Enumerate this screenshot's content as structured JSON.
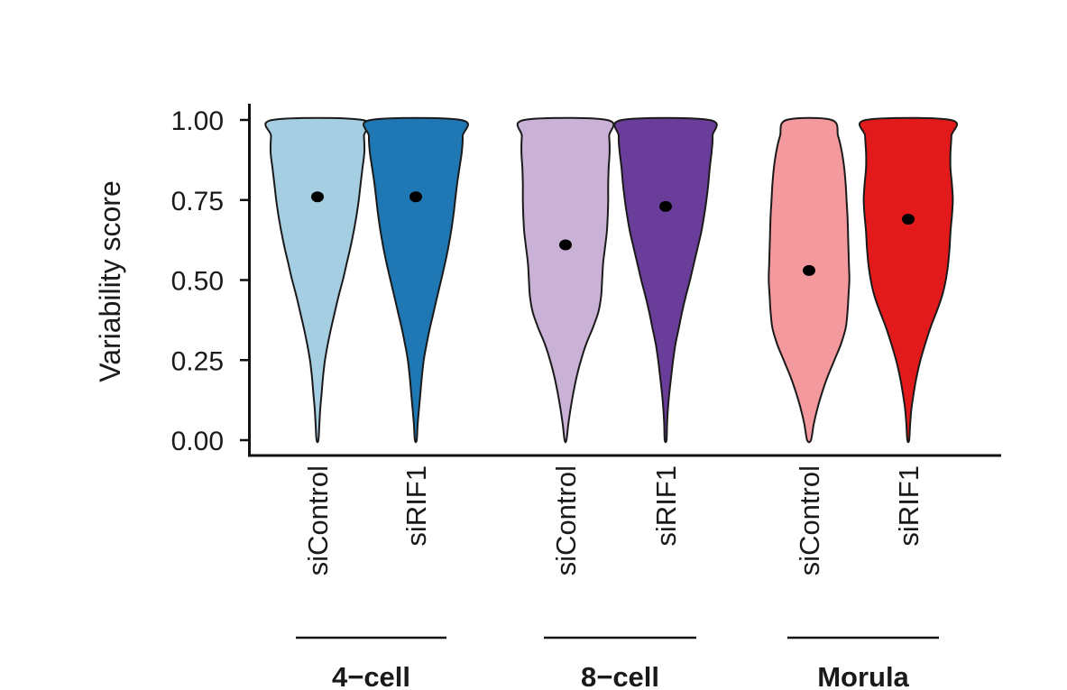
{
  "chart_data": {
    "type": "violin",
    "ylabel": "Variability score",
    "ylim": [
      0,
      1
    ],
    "yticks": [
      "0.00",
      "0.25",
      "0.50",
      "0.75",
      "1.00"
    ],
    "grid": false,
    "legend": "none",
    "groups": [
      {
        "label": "4−cell",
        "series": [
          {
            "label": "siControl",
            "color": "#a6cee3",
            "mean": 0.76,
            "density": [
              [
                0,
                0.02
              ],
              [
                0.05,
                0.04
              ],
              [
                0.1,
                0.06
              ],
              [
                0.15,
                0.09
              ],
              [
                0.2,
                0.12
              ],
              [
                0.25,
                0.16
              ],
              [
                0.3,
                0.22
              ],
              [
                0.35,
                0.29
              ],
              [
                0.4,
                0.37
              ],
              [
                0.45,
                0.45
              ],
              [
                0.5,
                0.54
              ],
              [
                0.55,
                0.62
              ],
              [
                0.6,
                0.7
              ],
              [
                0.65,
                0.77
              ],
              [
                0.7,
                0.83
              ],
              [
                0.75,
                0.88
              ],
              [
                0.8,
                0.92
              ],
              [
                0.85,
                0.96
              ],
              [
                0.9,
                1.0
              ],
              [
                0.95,
                0.99
              ],
              [
                1.0,
                0.96
              ]
            ]
          },
          {
            "label": "siRIF1",
            "color": "#1f78b4",
            "mean": 0.76,
            "density": [
              [
                0,
                0.02
              ],
              [
                0.05,
                0.04
              ],
              [
                0.1,
                0.07
              ],
              [
                0.15,
                0.1
              ],
              [
                0.2,
                0.13
              ],
              [
                0.25,
                0.17
              ],
              [
                0.3,
                0.23
              ],
              [
                0.35,
                0.3
              ],
              [
                0.4,
                0.38
              ],
              [
                0.45,
                0.46
              ],
              [
                0.5,
                0.54
              ],
              [
                0.55,
                0.62
              ],
              [
                0.6,
                0.69
              ],
              [
                0.65,
                0.75
              ],
              [
                0.7,
                0.8
              ],
              [
                0.75,
                0.84
              ],
              [
                0.8,
                0.88
              ],
              [
                0.85,
                0.93
              ],
              [
                0.9,
                0.98
              ],
              [
                0.95,
                1.0
              ],
              [
                1.0,
                0.96
              ]
            ]
          }
        ]
      },
      {
        "label": "8−cell",
        "series": [
          {
            "label": "siControl",
            "color": "#cab2d6",
            "mean": 0.61,
            "density": [
              [
                0,
                0.02
              ],
              [
                0.05,
                0.06
              ],
              [
                0.1,
                0.11
              ],
              [
                0.15,
                0.17
              ],
              [
                0.2,
                0.24
              ],
              [
                0.25,
                0.33
              ],
              [
                0.3,
                0.44
              ],
              [
                0.35,
                0.58
              ],
              [
                0.4,
                0.7
              ],
              [
                0.45,
                0.76
              ],
              [
                0.5,
                0.78
              ],
              [
                0.55,
                0.8
              ],
              [
                0.6,
                0.84
              ],
              [
                0.65,
                0.88
              ],
              [
                0.7,
                0.9
              ],
              [
                0.75,
                0.91
              ],
              [
                0.8,
                0.91
              ],
              [
                0.85,
                0.92
              ],
              [
                0.9,
                0.94
              ],
              [
                0.95,
                0.93
              ],
              [
                1.0,
                0.88
              ]
            ]
          },
          {
            "label": "siRIF1",
            "color": "#6a3d9a",
            "mean": 0.73,
            "density": [
              [
                0,
                0.02
              ],
              [
                0.05,
                0.03
              ],
              [
                0.1,
                0.05
              ],
              [
                0.15,
                0.08
              ],
              [
                0.2,
                0.12
              ],
              [
                0.25,
                0.16
              ],
              [
                0.3,
                0.21
              ],
              [
                0.35,
                0.28
              ],
              [
                0.4,
                0.35
              ],
              [
                0.45,
                0.43
              ],
              [
                0.5,
                0.52
              ],
              [
                0.55,
                0.6
              ],
              [
                0.6,
                0.68
              ],
              [
                0.65,
                0.76
              ],
              [
                0.7,
                0.82
              ],
              [
                0.75,
                0.87
              ],
              [
                0.8,
                0.91
              ],
              [
                0.85,
                0.94
              ],
              [
                0.9,
                0.98
              ],
              [
                0.95,
                1.0
              ],
              [
                1.0,
                0.93
              ]
            ]
          }
        ]
      },
      {
        "label": "Morula",
        "series": [
          {
            "label": "siControl",
            "color": "#f4999d",
            "mean": 0.53,
            "density": [
              [
                0,
                0.04
              ],
              [
                0.05,
                0.1
              ],
              [
                0.1,
                0.18
              ],
              [
                0.15,
                0.28
              ],
              [
                0.2,
                0.4
              ],
              [
                0.25,
                0.54
              ],
              [
                0.3,
                0.68
              ],
              [
                0.35,
                0.78
              ],
              [
                0.4,
                0.82
              ],
              [
                0.45,
                0.84
              ],
              [
                0.5,
                0.86
              ],
              [
                0.55,
                0.85
              ],
              [
                0.6,
                0.84
              ],
              [
                0.65,
                0.83
              ],
              [
                0.7,
                0.82
              ],
              [
                0.75,
                0.8
              ],
              [
                0.8,
                0.78
              ],
              [
                0.85,
                0.75
              ],
              [
                0.9,
                0.7
              ],
              [
                0.95,
                0.62
              ],
              [
                1.0,
                0.48
              ]
            ]
          },
          {
            "label": "siRIF1",
            "color": "#e31a1c",
            "mean": 0.69,
            "density": [
              [
                0,
                0.02
              ],
              [
                0.05,
                0.04
              ],
              [
                0.1,
                0.07
              ],
              [
                0.15,
                0.12
              ],
              [
                0.2,
                0.18
              ],
              [
                0.25,
                0.26
              ],
              [
                0.3,
                0.36
              ],
              [
                0.35,
                0.47
              ],
              [
                0.4,
                0.6
              ],
              [
                0.45,
                0.72
              ],
              [
                0.5,
                0.8
              ],
              [
                0.55,
                0.85
              ],
              [
                0.6,
                0.88
              ],
              [
                0.65,
                0.9
              ],
              [
                0.7,
                0.93
              ],
              [
                0.75,
                0.95
              ],
              [
                0.8,
                0.93
              ],
              [
                0.85,
                0.9
              ],
              [
                0.9,
                0.9
              ],
              [
                0.95,
                0.92
              ],
              [
                1.0,
                0.9
              ]
            ]
          }
        ]
      }
    ]
  }
}
